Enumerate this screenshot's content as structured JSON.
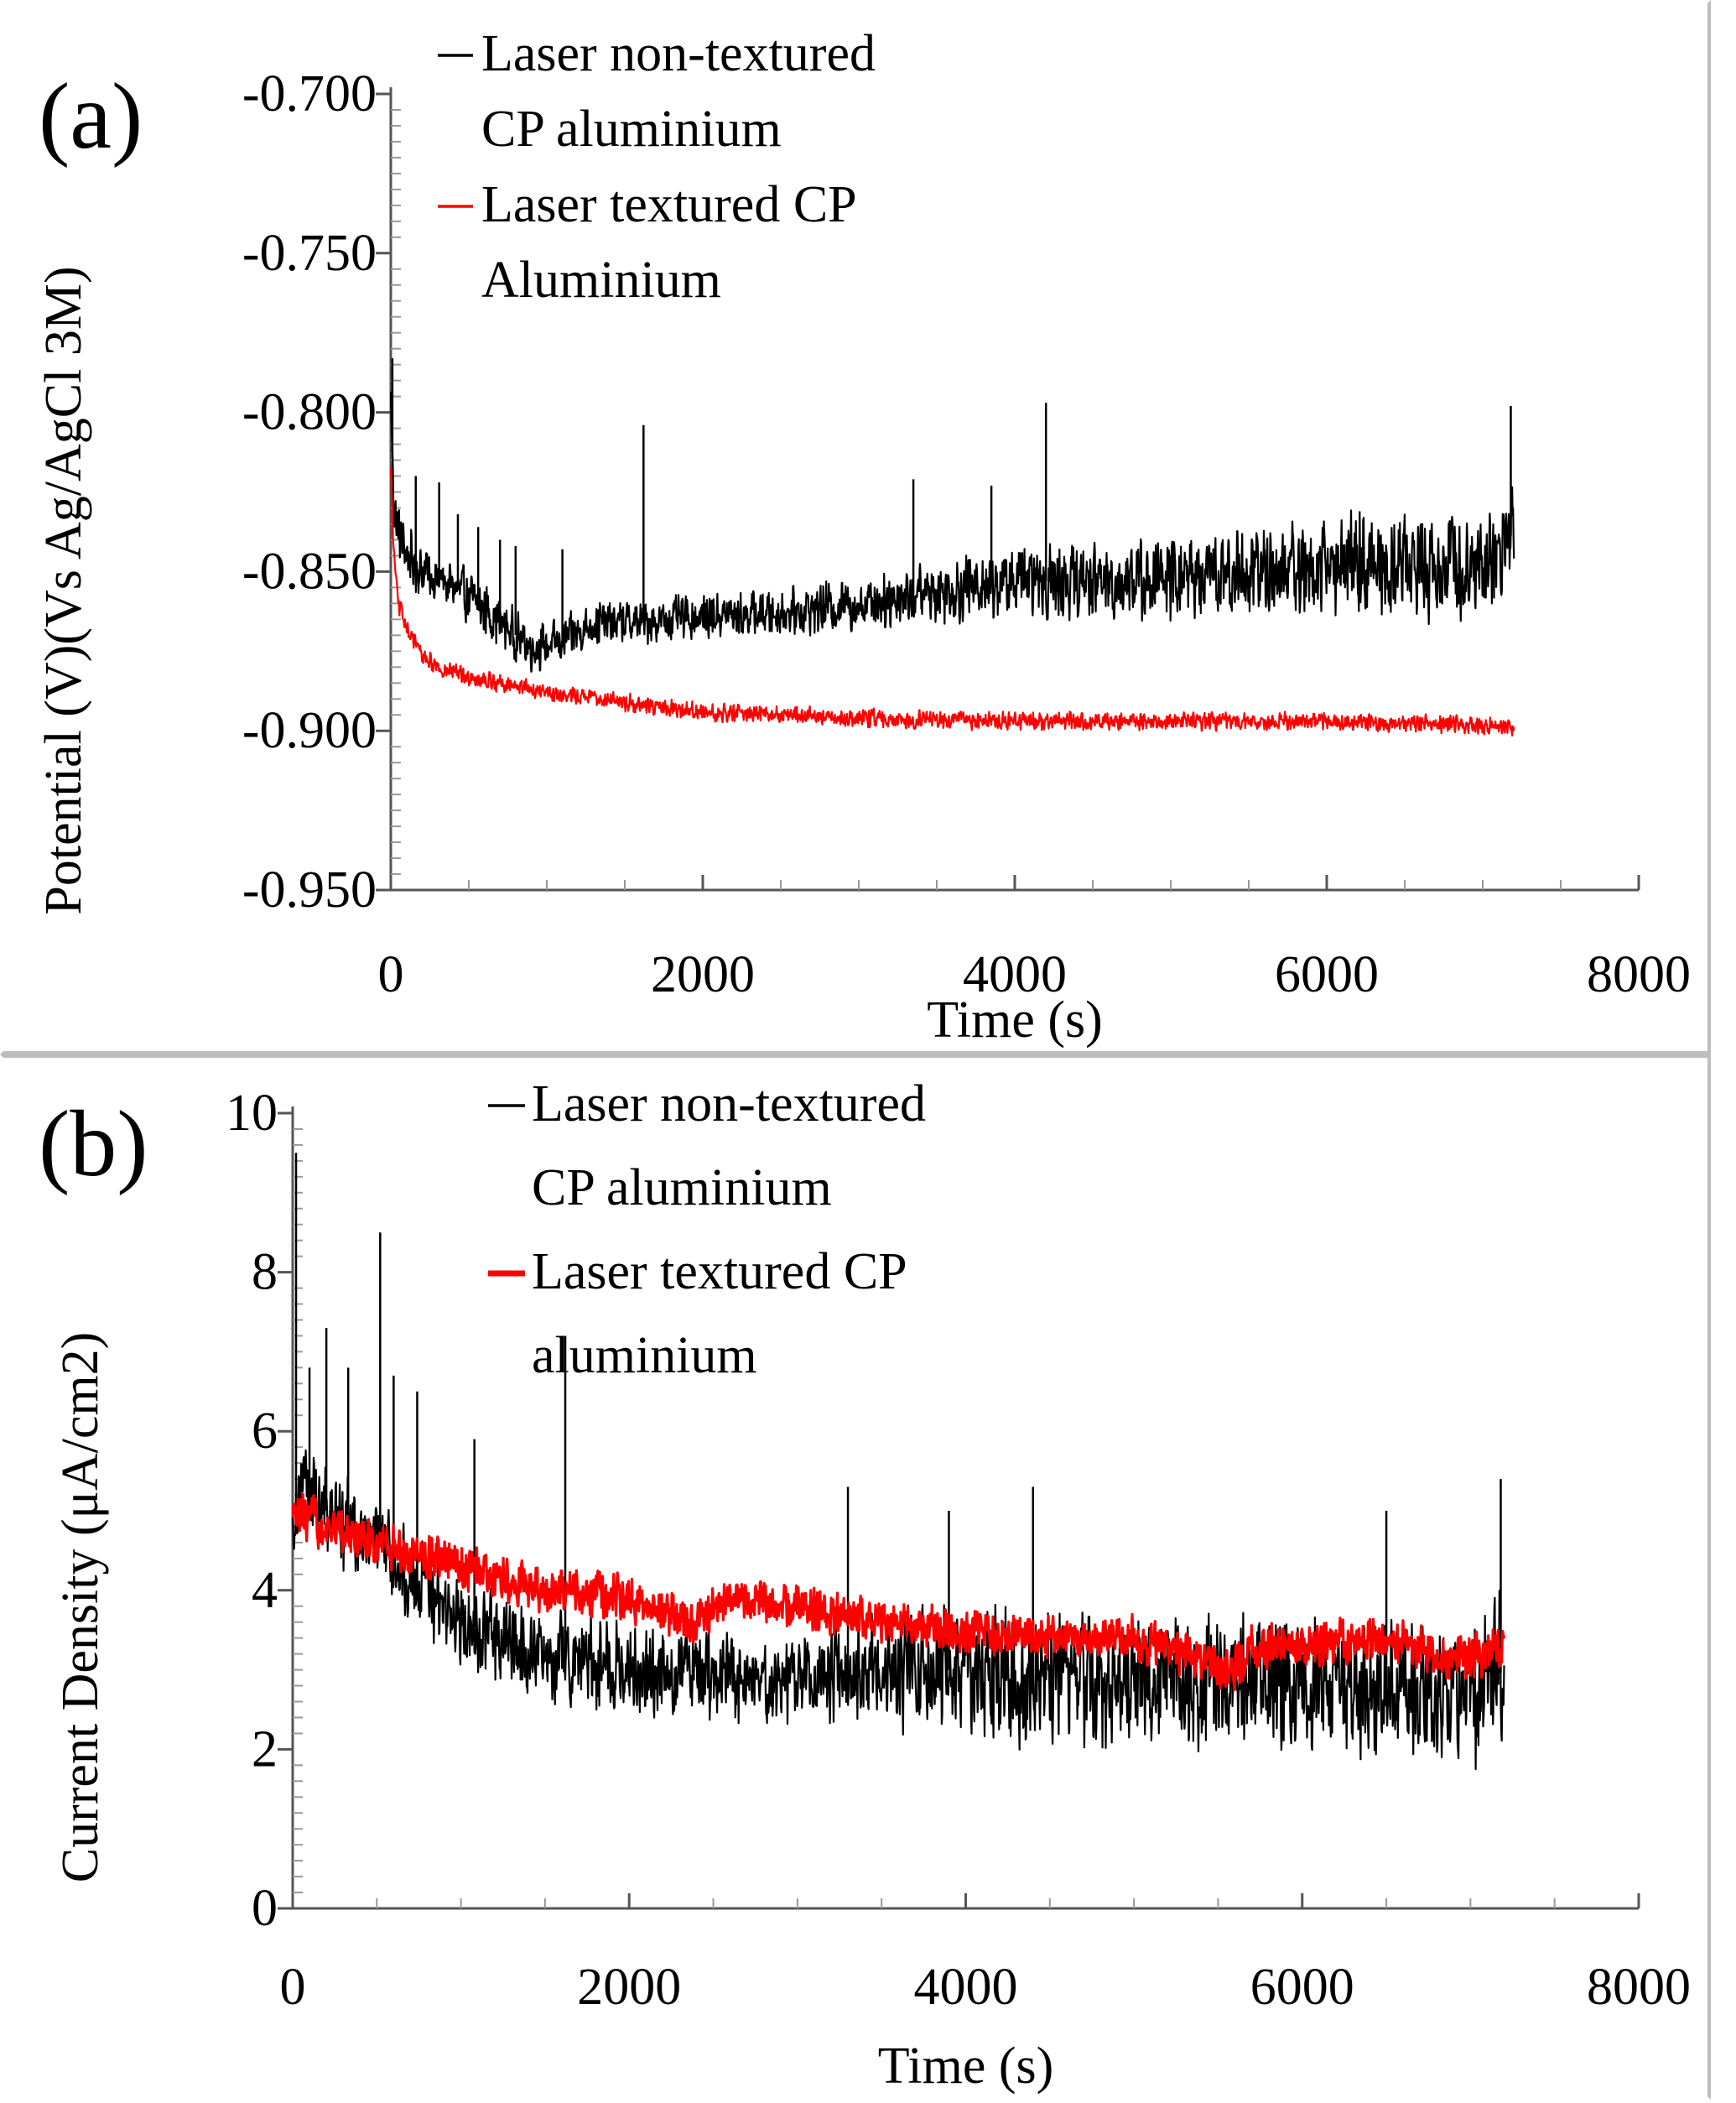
{
  "chart_data": [
    {
      "type": "line",
      "panel_label": "(a)",
      "xlabel": "Time (s)",
      "ylabel": "Potential (V)(Vs Ag/AgCl 3M)",
      "xlim": [
        0,
        8000
      ],
      "ylim": [
        -0.95,
        -0.7
      ],
      "x_ticks": [
        "0",
        "2000",
        "4000",
        "6000",
        "8000"
      ],
      "y_ticks": [
        "-0.700",
        "-0.750",
        "-0.800",
        "-0.850",
        "-0.900",
        "-0.950"
      ],
      "grid": false,
      "legend_position": "top-left",
      "series": [
        {
          "name": "Laser non-textured CP aluminium",
          "legend_lines": [
            "Laser non-textured",
            "CP aluminium"
          ],
          "color": "#000000",
          "x": [
            0,
            20,
            60,
            150,
            300,
            500,
            700,
            900,
            1100,
            1300,
            1600,
            2000,
            2500,
            3000,
            3500,
            4000,
            4500,
            5000,
            5500,
            6000,
            6500,
            7000,
            7200
          ],
          "y": [
            -0.795,
            -0.83,
            -0.84,
            -0.848,
            -0.852,
            -0.858,
            -0.866,
            -0.874,
            -0.872,
            -0.866,
            -0.866,
            -0.864,
            -0.863,
            -0.86,
            -0.856,
            -0.853,
            -0.853,
            -0.852,
            -0.85,
            -0.848,
            -0.848,
            -0.847,
            -0.838
          ],
          "noise": [
            0.004,
            0.006,
            0.006,
            0.006,
            0.006,
            0.006,
            0.006,
            0.005,
            0.005,
            0.005,
            0.005,
            0.005,
            0.005,
            0.006,
            0.007,
            0.008,
            0.009,
            0.009,
            0.01,
            0.011,
            0.012,
            0.012,
            0.015
          ],
          "spikes": [
            {
              "x": 10,
              "y": -0.783
            },
            {
              "x": 160,
              "y": -0.82
            },
            {
              "x": 310,
              "y": -0.822
            },
            {
              "x": 430,
              "y": -0.832
            },
            {
              "x": 560,
              "y": -0.836
            },
            {
              "x": 700,
              "y": -0.84
            },
            {
              "x": 800,
              "y": -0.842
            },
            {
              "x": 1100,
              "y": -0.843
            },
            {
              "x": 1620,
              "y": -0.804
            },
            {
              "x": 3350,
              "y": -0.821
            },
            {
              "x": 3850,
              "y": -0.823
            },
            {
              "x": 4200,
              "y": -0.797
            },
            {
              "x": 7180,
              "y": -0.798
            }
          ]
        },
        {
          "name": "Laser textured CP Aluminium",
          "legend_lines": [
            "Laser textured CP",
            "Aluminium"
          ],
          "color": "#ff0000",
          "x": [
            0,
            20,
            50,
            100,
            200,
            300,
            500,
            800,
            1000,
            1500,
            2000,
            2500,
            3000,
            4000,
            5000,
            6000,
            7000,
            7200
          ],
          "y": [
            -0.818,
            -0.845,
            -0.86,
            -0.868,
            -0.876,
            -0.88,
            -0.883,
            -0.886,
            -0.888,
            -0.891,
            -0.894,
            -0.895,
            -0.896,
            -0.897,
            -0.897,
            -0.897,
            -0.898,
            -0.899
          ],
          "noise": [
            0.002,
            0.002,
            0.002,
            0.002,
            0.002,
            0.002,
            0.002,
            0.002,
            0.002,
            0.002,
            0.002,
            0.002,
            0.002,
            0.002,
            0.002,
            0.002,
            0.002,
            0.002
          ],
          "spikes": []
        }
      ]
    },
    {
      "type": "line",
      "panel_label": "(b)",
      "xlabel": "Time (s)",
      "ylabel": "Current Density (μA/cm2)",
      "xlim": [
        0,
        8000
      ],
      "ylim": [
        0,
        10
      ],
      "x_ticks": [
        "0",
        "2000",
        "4000",
        "6000",
        "8000"
      ],
      "y_ticks": [
        "10",
        "8",
        "6",
        "4",
        "2",
        "0"
      ],
      "grid": false,
      "legend_position": "top-left",
      "series": [
        {
          "name": "Laser non-textured CP aluminium",
          "legend_lines": [
            "Laser non-textured",
            "CP aluminium"
          ],
          "color": "#000000",
          "x": [
            0,
            50,
            200,
            500,
            800,
            1000,
            1500,
            2000,
            2500,
            3000,
            3500,
            4000,
            4500,
            5000,
            5500,
            6000,
            6500,
            7000,
            7200
          ],
          "y": [
            4.8,
            5.4,
            5.0,
            4.6,
            4.0,
            3.6,
            3.2,
            3.0,
            2.9,
            2.9,
            3.0,
            3.0,
            2.9,
            2.9,
            2.9,
            2.8,
            2.8,
            2.6,
            3.0
          ],
          "noise": [
            0.3,
            0.4,
            0.4,
            0.4,
            0.4,
            0.4,
            0.4,
            0.4,
            0.4,
            0.4,
            0.5,
            0.6,
            0.6,
            0.6,
            0.6,
            0.6,
            0.6,
            0.6,
            0.8
          ],
          "spikes": [
            {
              "x": 20,
              "y": 9.5
            },
            {
              "x": 100,
              "y": 6.8
            },
            {
              "x": 200,
              "y": 7.3
            },
            {
              "x": 330,
              "y": 6.8
            },
            {
              "x": 520,
              "y": 8.5
            },
            {
              "x": 600,
              "y": 6.7
            },
            {
              "x": 740,
              "y": 6.5
            },
            {
              "x": 1080,
              "y": 5.9
            },
            {
              "x": 1620,
              "y": 7.2
            },
            {
              "x": 3300,
              "y": 5.3
            },
            {
              "x": 3900,
              "y": 5.0
            },
            {
              "x": 4400,
              "y": 5.3
            },
            {
              "x": 6500,
              "y": 5.0
            },
            {
              "x": 7180,
              "y": 5.4
            }
          ]
        },
        {
          "name": "Laser textured CP aluminium",
          "legend_lines": [
            "Laser textured CP",
            "aluminium"
          ],
          "color": "#ff0000",
          "x": [
            0,
            50,
            200,
            500,
            1000,
            1500,
            2000,
            2400,
            2600,
            3000,
            3500,
            4000,
            4500,
            5000,
            5600,
            5700,
            6000,
            6500,
            6900,
            7200
          ],
          "y": [
            4.8,
            4.9,
            4.8,
            4.6,
            4.3,
            4.0,
            3.9,
            3.6,
            3.9,
            3.8,
            3.6,
            3.5,
            3.4,
            3.4,
            3.0,
            3.3,
            3.3,
            3.4,
            3.1,
            3.3
          ],
          "noise": [
            0.25,
            0.25,
            0.2,
            0.2,
            0.2,
            0.2,
            0.2,
            0.2,
            0.2,
            0.2,
            0.2,
            0.2,
            0.2,
            0.2,
            0.2,
            0.2,
            0.2,
            0.2,
            0.2,
            0.2
          ],
          "spikes": []
        }
      ]
    }
  ]
}
